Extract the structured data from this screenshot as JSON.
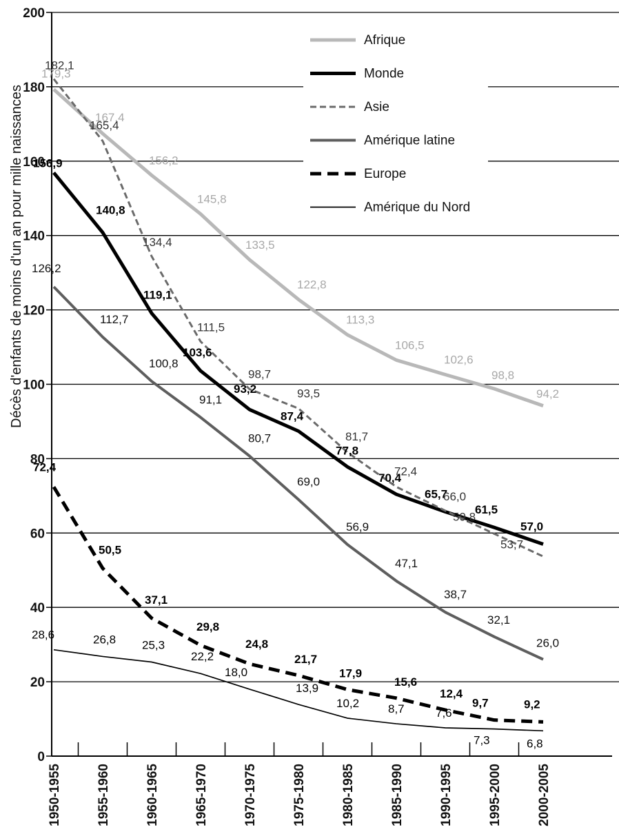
{
  "chart_data": {
    "type": "line",
    "title": "",
    "xlabel": "",
    "ylabel": "Décès d'enfants de moins d'un an pour mille naissances",
    "ylim": [
      0,
      200
    ],
    "yticks": [
      "0",
      "20",
      "40",
      "60",
      "80",
      "100",
      "120",
      "140",
      "160",
      "180",
      "200"
    ],
    "categories": [
      "1950-1955",
      "1955-1960",
      "1960-1965",
      "1965-1970",
      "1970-1975",
      "1975-1980",
      "1980-1985",
      "1985-1990",
      "1990-1995",
      "1995-2000",
      "2000-2005"
    ],
    "grid": true,
    "legend_position": "top-right",
    "series": [
      {
        "name": "Afrique",
        "style": "afrique",
        "color": "#b3b3b3",
        "values": [
          179.3,
          167.4,
          156.2,
          145.8,
          133.5,
          122.8,
          113.3,
          106.5,
          102.6,
          98.8,
          94.2
        ],
        "labels": [
          "179,3",
          "167,4",
          "156,2",
          "145,8",
          "133,5",
          "122,8",
          "113,3",
          "106,5",
          "102,6",
          "98,8",
          "94,2"
        ]
      },
      {
        "name": "Monde",
        "style": "monde",
        "color": "#000000",
        "values": [
          156.9,
          140.8,
          119.1,
          103.6,
          93.2,
          87.4,
          77.8,
          70.4,
          65.7,
          61.5,
          57.0
        ],
        "labels": [
          "156,9",
          "140,8",
          "119,1",
          "103,6",
          "93,2",
          "87,4",
          "77,8",
          "70,4",
          "65,7",
          "61,5",
          "57,0"
        ]
      },
      {
        "name": "Asie",
        "style": "asie",
        "color": "#666666",
        "values": [
          182.1,
          165.4,
          134.4,
          111.5,
          98.7,
          93.5,
          81.7,
          72.4,
          66.0,
          59.8,
          53.7
        ],
        "labels": [
          "182,1",
          "165,4",
          "134,4",
          "111,5",
          "98,7",
          "93,5",
          "81,7",
          "72,4",
          "66,0",
          "59,8",
          "53,7"
        ]
      },
      {
        "name": "Amérique latine",
        "style": "amlat",
        "color": "#555555",
        "values": [
          126.2,
          112.7,
          100.8,
          91.1,
          80.7,
          69.0,
          56.9,
          47.1,
          38.7,
          32.1,
          26.0
        ],
        "labels": [
          "126,2",
          "112,7",
          "100,8",
          "91,1",
          "80,7",
          "69,0",
          "56,9",
          "47,1",
          "38,7",
          "32,1",
          "26,0"
        ]
      },
      {
        "name": "Europe",
        "style": "europe",
        "color": "#000000",
        "values": [
          72.4,
          50.5,
          37.1,
          29.8,
          24.8,
          21.7,
          17.9,
          15.6,
          12.4,
          9.7,
          9.2
        ],
        "labels": [
          "72,4",
          "50,5",
          "37,1",
          "29,8",
          "24,8",
          "21,7",
          "17,9",
          "15,6",
          "12,4",
          "9,7",
          "9,2"
        ]
      },
      {
        "name": "Amérique du Nord",
        "style": "amnord",
        "color": "#000000",
        "values": [
          28.6,
          26.8,
          25.3,
          22.2,
          18.0,
          13.9,
          10.2,
          8.7,
          7.6,
          7.3,
          6.8
        ],
        "labels": [
          "28,6",
          "26,8",
          "25,3",
          "22,2",
          "18,0",
          "13,9",
          "10,2",
          "8,7",
          "7,6",
          "7,3",
          "6,8"
        ]
      }
    ]
  }
}
